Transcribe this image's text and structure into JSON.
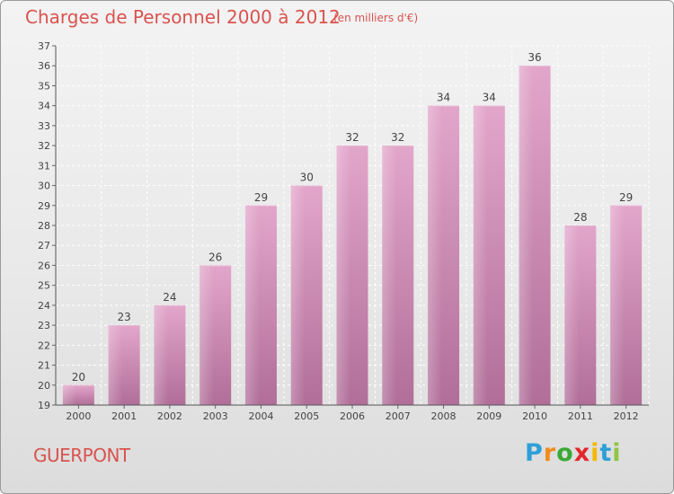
{
  "header": {
    "title": "Charges de Personnel 2000 à 2012",
    "subtitle": "(en milliers d'€)"
  },
  "footer": {
    "commune": "GUERPONT",
    "logo_letters": [
      "P",
      "r",
      "o",
      "x",
      "i",
      "t",
      "i"
    ],
    "logo_colors": [
      "#2e9fd8",
      "#f28c1e",
      "#3aa935",
      "#e2262b",
      "#f5b800",
      "#2e9fd8",
      "#8fc641"
    ]
  },
  "colors": {
    "bar": "#c978a8",
    "title": "#d9534f"
  },
  "chart_data": {
    "type": "bar",
    "categories": [
      "2000",
      "2001",
      "2002",
      "2003",
      "2004",
      "2005",
      "2006",
      "2007",
      "2008",
      "2009",
      "2010",
      "2011",
      "2012"
    ],
    "values": [
      20,
      23,
      24,
      26,
      29,
      30,
      32,
      32,
      34,
      34,
      36,
      28,
      29
    ],
    "title": "Charges de Personnel 2000 à 2012",
    "subtitle": "(en milliers d'€)",
    "ylim": [
      19,
      37
    ],
    "yticks": [
      19,
      20,
      21,
      22,
      23,
      24,
      25,
      26,
      27,
      28,
      29,
      30,
      31,
      32,
      33,
      34,
      35,
      36,
      37
    ],
    "grid": true,
    "data_labels": true
  }
}
